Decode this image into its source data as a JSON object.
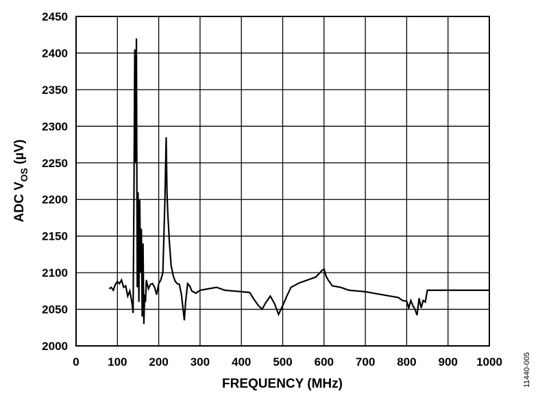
{
  "chart_data": {
    "type": "line",
    "title": "",
    "xlabel": "FREQUENCY (MHz)",
    "ylabel": {
      "main": "ADC V",
      "sub": "OS",
      "unit": " (µV)"
    },
    "xlim": [
      0,
      1000
    ],
    "ylim": [
      2000,
      2450
    ],
    "xticks": [
      "0",
      "100",
      "200",
      "300",
      "400",
      "500",
      "600",
      "700",
      "800",
      "900",
      "1000"
    ],
    "yticks": [
      "2000",
      "2050",
      "2100",
      "2150",
      "2200",
      "2250",
      "2300",
      "2350",
      "2400",
      "2450"
    ],
    "grid": true,
    "legend": "none",
    "figure_id": "11440-005",
    "line_color": "#000000",
    "series": [
      {
        "x": [
          80,
          85,
          90,
          95,
          100,
          105,
          110,
          115,
          120,
          125,
          130,
          135,
          138,
          140,
          142,
          144,
          146,
          148,
          150,
          152,
          154,
          156,
          158,
          160,
          162,
          164,
          166,
          168,
          170,
          175,
          180,
          185,
          190,
          195,
          200,
          205,
          210,
          215,
          218,
          220,
          222,
          224,
          226,
          230,
          235,
          240,
          245,
          250,
          255,
          260,
          262,
          265,
          270,
          275,
          280,
          290,
          300,
          320,
          340,
          360,
          380,
          400,
          420,
          430,
          440,
          450,
          460,
          470,
          480,
          490,
          500,
          510,
          520,
          540,
          560,
          580,
          590,
          595,
          600,
          605,
          610,
          620,
          640,
          660,
          680,
          700,
          720,
          740,
          760,
          780,
          790,
          800,
          805,
          810,
          815,
          820,
          825,
          830,
          835,
          840,
          845,
          850,
          900,
          1000
        ],
        "y": [
          2078,
          2080,
          2076,
          2084,
          2088,
          2085,
          2090,
          2080,
          2082,
          2068,
          2075,
          2060,
          2045,
          2200,
          2405,
          2250,
          2420,
          2080,
          2210,
          2060,
          2200,
          2100,
          2160,
          2040,
          2140,
          2030,
          2070,
          2060,
          2090,
          2078,
          2084,
          2085,
          2080,
          2070,
          2085,
          2090,
          2100,
          2200,
          2285,
          2210,
          2180,
          2160,
          2140,
          2110,
          2096,
          2088,
          2085,
          2084,
          2070,
          2045,
          2035,
          2060,
          2085,
          2082,
          2075,
          2072,
          2076,
          2078,
          2080,
          2076,
          2075,
          2074,
          2073,
          2064,
          2056,
          2050,
          2060,
          2068,
          2058,
          2043,
          2055,
          2068,
          2080,
          2086,
          2090,
          2094,
          2100,
          2103,
          2105,
          2095,
          2090,
          2082,
          2080,
          2076,
          2075,
          2074,
          2072,
          2070,
          2068,
          2066,
          2062,
          2061,
          2052,
          2062,
          2055,
          2050,
          2042,
          2065,
          2052,
          2062,
          2060,
          2076,
          2076,
          2076
        ]
      }
    ]
  }
}
